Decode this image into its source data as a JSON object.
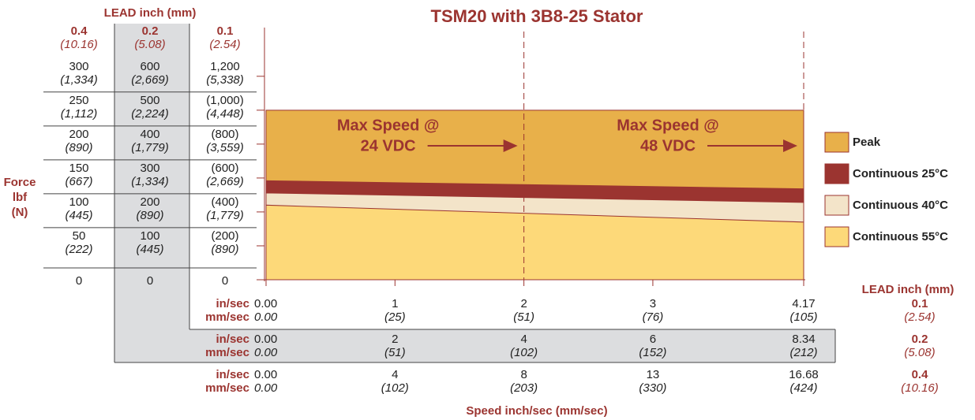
{
  "chart_data": {
    "type": "area",
    "title": "TSM20 with 3B8-25 Stator",
    "y_label": [
      "Force",
      "lbf",
      "(N)"
    ],
    "x_label": "Speed inch/sec (mm/sec)",
    "xlim": [
      0,
      4.17
    ],
    "xticks": [
      0,
      1,
      2,
      3,
      4.17
    ],
    "ylim": [
      0,
      366
    ],
    "yticks": [
      0,
      50,
      100,
      150,
      200,
      250,
      300
    ],
    "x": [
      0,
      4.17
    ],
    "series": [
      {
        "name": "Peak",
        "color": "#e8b04a",
        "values": [
          250,
          250
        ]
      },
      {
        "name": "Continuous 25°C",
        "color": "#9b3430",
        "values": [
          146,
          134
        ]
      },
      {
        "name": "Continuous 40°C",
        "color": "#f3e4c9",
        "values": [
          128,
          114
        ]
      },
      {
        "name": "Continuous 55°C",
        "color": "#fdd979",
        "values": [
          110,
          85
        ]
      }
    ],
    "annotations": [
      {
        "x": 2,
        "lines": [
          "Max Speed @",
          "24 VDC"
        ]
      },
      {
        "x": 4.17,
        "lines": [
          "Max Speed @",
          "48 VDC"
        ]
      }
    ],
    "force_table": {
      "title": "LEAD  inch (mm)",
      "leads": [
        [
          "0.4",
          "(10.16)"
        ],
        [
          "0.2",
          "(5.08)"
        ],
        [
          "0.1",
          "(2.54)"
        ]
      ],
      "rows": [
        [
          [
            "300",
            "(1,334)"
          ],
          [
            "600",
            "(2,669)"
          ],
          [
            "1,200",
            "(5,338)"
          ]
        ],
        [
          [
            "250",
            "(1,112)"
          ],
          [
            "500",
            "(2,224)"
          ],
          [
            "(1,000)",
            "(4,448)"
          ]
        ],
        [
          [
            "200",
            "(890)"
          ],
          [
            "400",
            "(1,779)"
          ],
          [
            "(800)",
            "(3,559)"
          ]
        ],
        [
          [
            "150",
            "(667)"
          ],
          [
            "300",
            "(1,334)"
          ],
          [
            "(600)",
            "(2,669)"
          ]
        ],
        [
          [
            "100",
            "(445)"
          ],
          [
            "200",
            "(890)"
          ],
          [
            "(400)",
            "(1,779)"
          ]
        ],
        [
          [
            "50",
            "(222)"
          ],
          [
            "100",
            "(445)"
          ],
          [
            "(200)",
            "(890)"
          ]
        ],
        [
          [
            "0"
          ],
          [
            "0"
          ],
          [
            "0"
          ]
        ]
      ]
    },
    "speed_table": {
      "title": "LEAD inch (mm)",
      "units": [
        "in/sec",
        "mm/sec"
      ],
      "rows": [
        {
          "lead": [
            "0.1",
            "(2.54)"
          ],
          "speeds": [
            [
              "0.00",
              "0.00"
            ],
            [
              "1",
              "(25)"
            ],
            [
              "2",
              "(51)"
            ],
            [
              "3",
              "(76)"
            ],
            [
              "4.17",
              "(105)"
            ]
          ]
        },
        {
          "lead": [
            "0.2",
            "(5.08)"
          ],
          "speeds": [
            [
              "0.00",
              "0.00"
            ],
            [
              "2",
              "(51)"
            ],
            [
              "4",
              "(102)"
            ],
            [
              "6",
              "(152)"
            ],
            [
              "8.34",
              "(212)"
            ]
          ]
        },
        {
          "lead": [
            "0.4",
            "(10.16)"
          ],
          "speeds": [
            [
              "0.00",
              "0.00"
            ],
            [
              "4",
              "(102)"
            ],
            [
              "8",
              "(203)"
            ],
            [
              "13",
              "(330)"
            ],
            [
              "16.68",
              "(424)"
            ]
          ]
        }
      ]
    }
  }
}
